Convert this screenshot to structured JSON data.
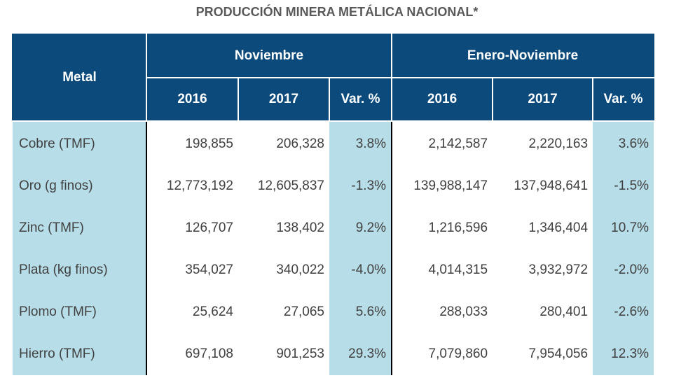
{
  "title": "PRODUCCIÓN MINERA METÁLICA NACIONAL*",
  "chart_data": {
    "type": "table",
    "title": "PRODUCCIÓN MINERA METÁLICA NACIONAL*",
    "header": {
      "metal": "Metal",
      "groups": [
        "Noviembre",
        "Enero-Noviembre"
      ],
      "subcolumns": [
        "2016",
        "2017",
        "Var. %",
        "2016",
        "2017",
        "Var. %"
      ]
    },
    "rows": [
      {
        "metal": "Cobre (TMF)",
        "nov_2016": "198,855",
        "nov_2017": "206,328",
        "nov_var": "3.8%",
        "ytd_2016": "2,142,587",
        "ytd_2017": "2,220,163",
        "ytd_var": "3.6%"
      },
      {
        "metal": "Oro (g finos)",
        "nov_2016": "12,773,192",
        "nov_2017": "12,605,837",
        "nov_var": "-1.3%",
        "ytd_2016": "139,988,147",
        "ytd_2017": "137,948,641",
        "ytd_var": "-1.5%"
      },
      {
        "metal": "Zinc (TMF)",
        "nov_2016": "126,707",
        "nov_2017": "138,402",
        "nov_var": "9.2%",
        "ytd_2016": "1,216,596",
        "ytd_2017": "1,346,404",
        "ytd_var": "10.7%"
      },
      {
        "metal": "Plata (kg finos)",
        "nov_2016": "354,027",
        "nov_2017": "340,022",
        "nov_var": "-4.0%",
        "ytd_2016": "4,014,315",
        "ytd_2017": "3,932,972",
        "ytd_var": "-2.0%"
      },
      {
        "metal": "Plomo (TMF)",
        "nov_2016": "25,624",
        "nov_2017": "27,065",
        "nov_var": "5.6%",
        "ytd_2016": "288,033",
        "ytd_2017": "280,401",
        "ytd_var": "-2.6%"
      },
      {
        "metal": "Hierro (TMF)",
        "nov_2016": "697,108",
        "nov_2017": "901,253",
        "nov_var": "29.3%",
        "ytd_2016": "7,079,860",
        "ytd_2017": "7,954,056",
        "ytd_var": "12.3%"
      }
    ]
  },
  "colors": {
    "header_bg": "#0b4a7a",
    "header_text": "#ffffff",
    "highlight_bg": "#b7dde8",
    "body_text": "#404040",
    "title_text": "#595959"
  }
}
